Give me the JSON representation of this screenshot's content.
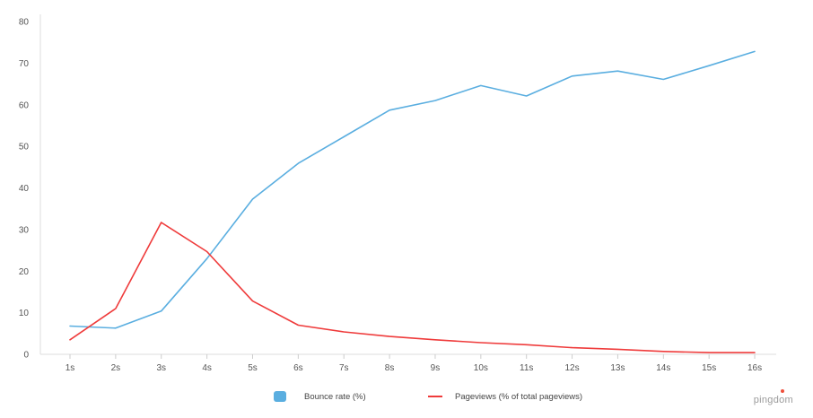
{
  "chart_data": {
    "type": "line",
    "categories": [
      "1s",
      "2s",
      "3s",
      "4s",
      "5s",
      "6s",
      "7s",
      "8s",
      "9s",
      "10s",
      "11s",
      "12s",
      "13s",
      "14s",
      "15s",
      "16s"
    ],
    "series": [
      {
        "name": "Bounce rate  (%)",
        "color": "#5aaee0",
        "legend_marker": "box",
        "values": [
          6.8,
          6.3,
          10.4,
          23.0,
          37.3,
          45.9,
          52.3,
          58.7,
          61.0,
          64.6,
          62.1,
          66.9,
          68.1,
          66.1,
          69.4,
          72.8
        ]
      },
      {
        "name": "Pageviews (% of total pageviews)",
        "color": "#ef3b3b",
        "legend_marker": "line",
        "values": [
          3.5,
          11.0,
          31.7,
          24.7,
          12.8,
          7.0,
          5.4,
          4.3,
          3.5,
          2.8,
          2.3,
          1.6,
          1.2,
          0.7,
          0.4,
          0.4
        ]
      }
    ],
    "ylim": [
      0,
      80
    ],
    "yticks": [
      0,
      10,
      20,
      30,
      40,
      50,
      60,
      70,
      80
    ],
    "grid": false,
    "legend_position": "bottom-center"
  },
  "brand": {
    "name": "pingdom",
    "accent": "#ef4f3b"
  }
}
